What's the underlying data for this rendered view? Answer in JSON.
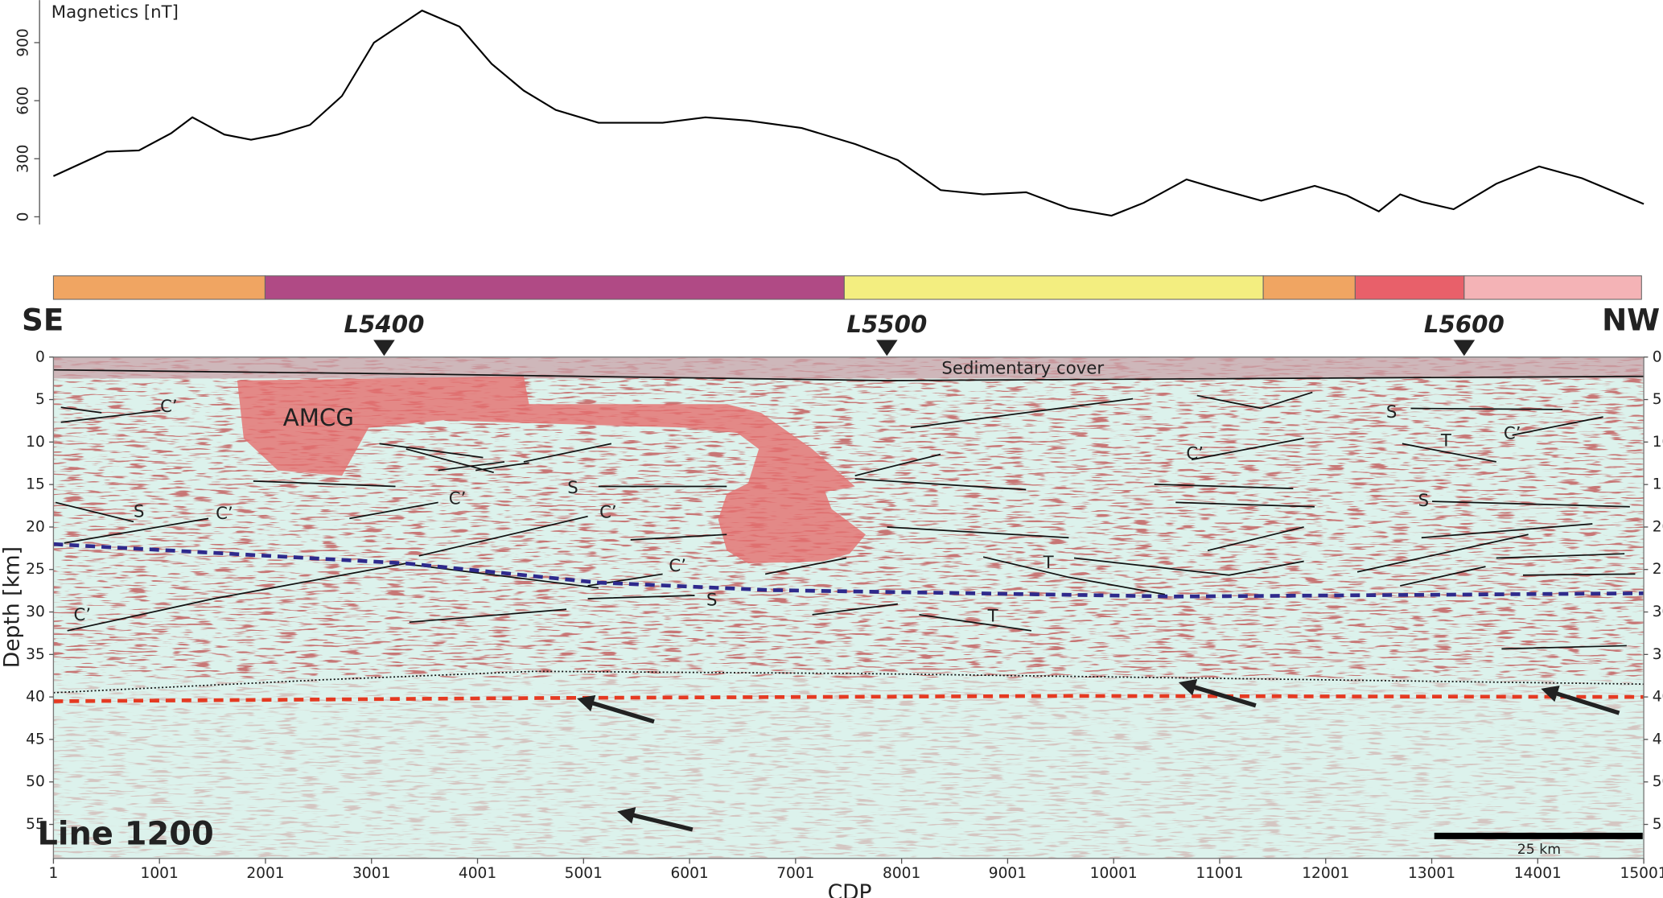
{
  "chart_data": [
    {
      "type": "line",
      "ylabel": "Magnetics [nT]",
      "color": "#000000",
      "x": [
        1,
        505,
        807,
        1110,
        1311,
        1613,
        1865,
        2117,
        2420,
        2722,
        3024,
        3478,
        3831,
        4134,
        4436,
        4739,
        5142,
        5747,
        6150,
        6554,
        7058,
        7562,
        7965,
        8369,
        8772,
        9175,
        9578,
        9981,
        10284,
        10688,
        10990,
        11393,
        11897,
        12200,
        12502,
        12704,
        12906,
        13208,
        13611,
        14014,
        14418,
        15001
      ],
      "values": [
        210,
        337,
        343,
        431,
        514,
        425,
        398,
        425,
        475,
        624,
        900,
        1066,
        983,
        790,
        652,
        552,
        486,
        486,
        514,
        497,
        459,
        376,
        293,
        138,
        116,
        127,
        44,
        6,
        72,
        193,
        144,
        83,
        160,
        110,
        28,
        116,
        77,
        39,
        171,
        260,
        199,
        66
      ],
      "xlim": [
        1,
        15001
      ],
      "ylim": [
        -40,
        1120
      ],
      "yticks": [
        0,
        300,
        600,
        900
      ]
    },
    {
      "type": "section",
      "title": "Line 1200",
      "xlabel": "CDP",
      "ylabel": "Depth [km]",
      "left_label": "SE",
      "right_label": "NW",
      "xlim": [
        1,
        15001
      ],
      "ylim": [
        0,
        59
      ],
      "xticks": [
        1,
        1001,
        2001,
        3001,
        4001,
        5001,
        6001,
        7001,
        8001,
        9001,
        10001,
        11001,
        12001,
        13001,
        14001,
        15001
      ],
      "yticks": [
        0,
        5,
        10,
        15,
        20,
        25,
        30,
        35,
        40,
        45,
        50,
        55
      ],
      "zones": [
        {
          "from": 1,
          "to": 1997,
          "color": "#f0a562"
        },
        {
          "from": 1997,
          "to": 7460,
          "color": "#b04a85"
        },
        {
          "from": 7460,
          "to": 11412,
          "color": "#f3ee80"
        },
        {
          "from": 11412,
          "to": 12279,
          "color": "#f0a562"
        },
        {
          "from": 12279,
          "to": 13307,
          "color": "#e8606a"
        },
        {
          "from": 13307,
          "to": 14980,
          "color": "#f4b3b6"
        }
      ],
      "markers": [
        {
          "label": "L5400",
          "x": 3120
        },
        {
          "label": "L5500",
          "x": 7862
        },
        {
          "label": "L5600",
          "x": 13307
        }
      ],
      "annotations": [
        "Sedimentary cover",
        "AMCG",
        "C’",
        "S",
        "C’",
        "C’",
        "S",
        "C’",
        "C’",
        "S",
        "C’",
        "T",
        "T",
        "C’",
        "S",
        "T",
        "C’",
        "S"
      ],
      "scale_bar": "25 km"
    }
  ]
}
